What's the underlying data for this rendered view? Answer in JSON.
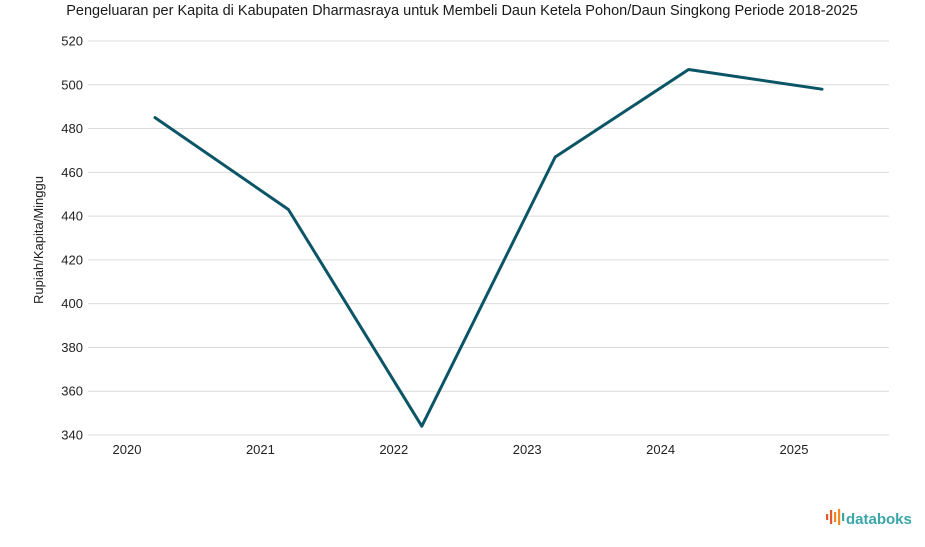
{
  "brand": {
    "name": "databoks"
  },
  "chart_data": {
    "type": "line",
    "title": "Pengeluaran per Kapita di Kabupaten Dharmasraya untuk Membeli Daun Ketela Pohon/Daun Singkong Periode 2018-2025",
    "xlabel": "",
    "ylabel": "Rupiah/Kapita/Minggu",
    "x_ticks": [
      "2020",
      "2021",
      "2022",
      "2023",
      "2024",
      "2025"
    ],
    "x": [
      "2020",
      "2021",
      "2022",
      "2023",
      "2024",
      "2025"
    ],
    "series": [
      {
        "values": [
          485,
          443,
          344,
          467,
          507,
          498
        ],
        "color": "#0b5566"
      }
    ],
    "ylim": [
      340,
      520
    ],
    "y_ticks": [
      340,
      360,
      380,
      400,
      420,
      440,
      460,
      480,
      500,
      520
    ],
    "grid": true,
    "legend": "none"
  }
}
